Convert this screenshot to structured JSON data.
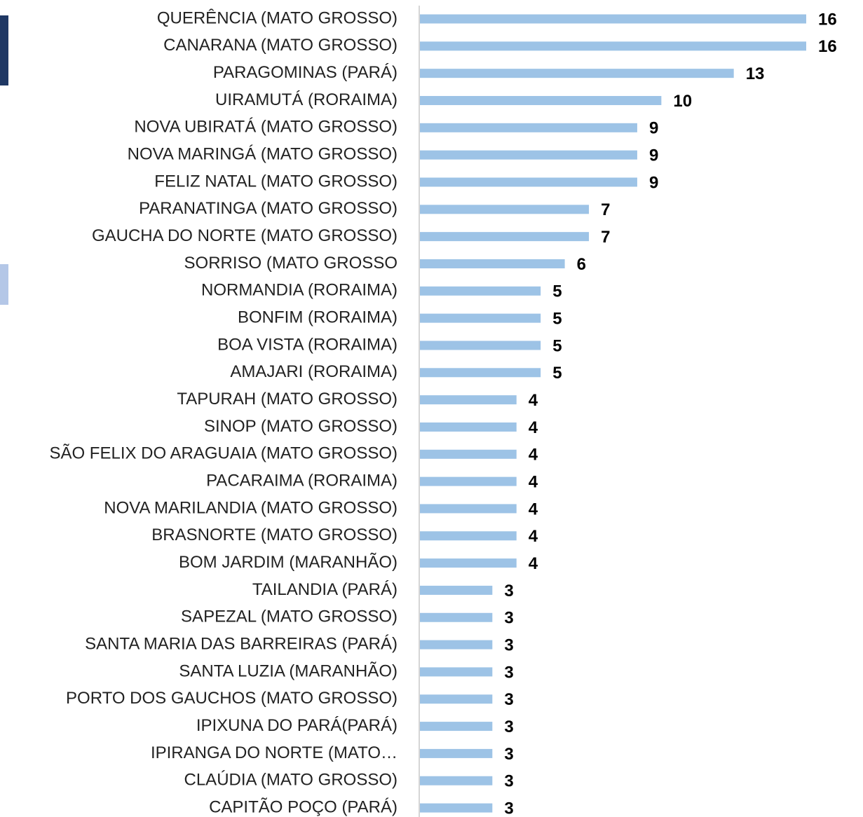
{
  "chart_data": {
    "type": "bar",
    "orientation": "horizontal",
    "color": "#9dc3e6",
    "categories": [
      "QUERÊNCIA (MATO GROSSO)",
      "CANARANA (MATO GROSSO)",
      "PARAGOMINAS (PARÁ)",
      "UIRAMUTÁ (RORAIMA)",
      "NOVA UBIRATÁ (MATO GROSSO)",
      "NOVA MARINGÁ (MATO GROSSO)",
      "FELIZ NATAL (MATO GROSSO)",
      "PARANATINGA (MATO GROSSO)",
      "GAUCHA DO NORTE (MATO GROSSO)",
      "SORRISO (MATO GROSSO",
      "NORMANDIA (RORAIMA)",
      "BONFIM (RORAIMA)",
      "BOA VISTA (RORAIMA)",
      "AMAJARI (RORAIMA)",
      "TAPURAH (MATO GROSSO)",
      "SINOP (MATO GROSSO)",
      "SÃO FELIX DO ARAGUAIA (MATO GROSSO)",
      "PACARAIMA (RORAIMA)",
      "NOVA MARILANDIA (MATO GROSSO)",
      "BRASNORTE (MATO GROSSO)",
      "BOM JARDIM (MARANHÃO)",
      "TAILANDIA (PARÁ)",
      "SAPEZAL (MATO GROSSO)",
      "SANTA MARIA DAS BARREIRAS (PARÁ)",
      "SANTA LUZIA (MARANHÃO)",
      "PORTO DOS GAUCHOS (MATO GROSSO)",
      "IPIXUNA DO PARÁ(PARÁ)",
      "IPIRANGA DO NORTE (MATO…",
      "CLAÚDIA (MATO GROSSO)",
      "CAPITÃO POÇO (PARÁ)"
    ],
    "values": [
      16,
      16,
      13,
      10,
      9,
      9,
      9,
      7,
      7,
      6,
      5,
      5,
      5,
      5,
      4,
      4,
      4,
      4,
      4,
      4,
      4,
      3,
      3,
      3,
      3,
      3,
      3,
      3,
      3,
      3
    ]
  }
}
